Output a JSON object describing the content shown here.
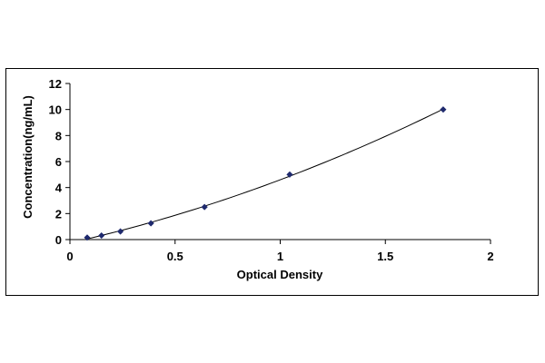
{
  "chart_data": {
    "type": "scatter",
    "title": "",
    "xlabel": "Optical Density",
    "ylabel": "Concentration(ng/mL)",
    "xlim": [
      0,
      2
    ],
    "ylim": [
      0,
      12
    ],
    "x_ticks": [
      0,
      0.5,
      1,
      1.5,
      2
    ],
    "x_tick_labels": [
      "0",
      "0.5",
      "1",
      "1.5",
      "2"
    ],
    "y_ticks": [
      0,
      2,
      4,
      6,
      8,
      10,
      12
    ],
    "y_tick_labels": [
      "0",
      "2",
      "4",
      "6",
      "8",
      "10",
      "12"
    ],
    "grid": false,
    "legend": "none",
    "series": [
      {
        "x": [
          0.082,
          0.15,
          0.24,
          0.385,
          0.64,
          1.045,
          1.775
        ],
        "y": [
          0.156,
          0.312,
          0.625,
          1.25,
          2.5,
          5,
          10
        ],
        "marker": "diamond",
        "color": "#1f2a6e",
        "trendline": "polynomial"
      }
    ]
  }
}
